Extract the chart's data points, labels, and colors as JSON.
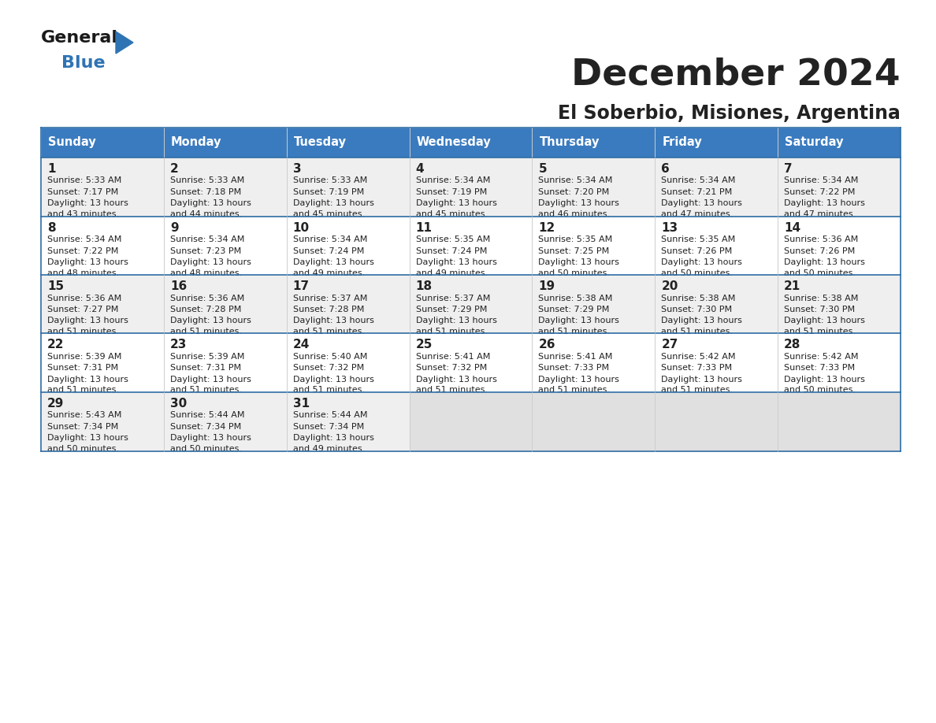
{
  "title": "December 2024",
  "subtitle": "El Soberbio, Misiones, Argentina",
  "header_bg": "#3a7bbf",
  "header_text": "#ffffff",
  "row_bg_odd": "#efefef",
  "row_bg_even": "#ffffff",
  "empty_cell_bg": "#e0e0e0",
  "border_color": "#2e6da4",
  "text_color": "#222222",
  "days_of_week": [
    "Sunday",
    "Monday",
    "Tuesday",
    "Wednesday",
    "Thursday",
    "Friday",
    "Saturday"
  ],
  "calendar": [
    [
      {
        "day": 1,
        "sunrise": "5:33 AM",
        "sunset": "7:17 PM",
        "daylight": "13 hours and 43 minutes."
      },
      {
        "day": 2,
        "sunrise": "5:33 AM",
        "sunset": "7:18 PM",
        "daylight": "13 hours and 44 minutes."
      },
      {
        "day": 3,
        "sunrise": "5:33 AM",
        "sunset": "7:19 PM",
        "daylight": "13 hours and 45 minutes."
      },
      {
        "day": 4,
        "sunrise": "5:34 AM",
        "sunset": "7:19 PM",
        "daylight": "13 hours and 45 minutes."
      },
      {
        "day": 5,
        "sunrise": "5:34 AM",
        "sunset": "7:20 PM",
        "daylight": "13 hours and 46 minutes."
      },
      {
        "day": 6,
        "sunrise": "5:34 AM",
        "sunset": "7:21 PM",
        "daylight": "13 hours and 47 minutes."
      },
      {
        "day": 7,
        "sunrise": "5:34 AM",
        "sunset": "7:22 PM",
        "daylight": "13 hours and 47 minutes."
      }
    ],
    [
      {
        "day": 8,
        "sunrise": "5:34 AM",
        "sunset": "7:22 PM",
        "daylight": "13 hours and 48 minutes."
      },
      {
        "day": 9,
        "sunrise": "5:34 AM",
        "sunset": "7:23 PM",
        "daylight": "13 hours and 48 minutes."
      },
      {
        "day": 10,
        "sunrise": "5:34 AM",
        "sunset": "7:24 PM",
        "daylight": "13 hours and 49 minutes."
      },
      {
        "day": 11,
        "sunrise": "5:35 AM",
        "sunset": "7:24 PM",
        "daylight": "13 hours and 49 minutes."
      },
      {
        "day": 12,
        "sunrise": "5:35 AM",
        "sunset": "7:25 PM",
        "daylight": "13 hours and 50 minutes."
      },
      {
        "day": 13,
        "sunrise": "5:35 AM",
        "sunset": "7:26 PM",
        "daylight": "13 hours and 50 minutes."
      },
      {
        "day": 14,
        "sunrise": "5:36 AM",
        "sunset": "7:26 PM",
        "daylight": "13 hours and 50 minutes."
      }
    ],
    [
      {
        "day": 15,
        "sunrise": "5:36 AM",
        "sunset": "7:27 PM",
        "daylight": "13 hours and 51 minutes."
      },
      {
        "day": 16,
        "sunrise": "5:36 AM",
        "sunset": "7:28 PM",
        "daylight": "13 hours and 51 minutes."
      },
      {
        "day": 17,
        "sunrise": "5:37 AM",
        "sunset": "7:28 PM",
        "daylight": "13 hours and 51 minutes."
      },
      {
        "day": 18,
        "sunrise": "5:37 AM",
        "sunset": "7:29 PM",
        "daylight": "13 hours and 51 minutes."
      },
      {
        "day": 19,
        "sunrise": "5:38 AM",
        "sunset": "7:29 PM",
        "daylight": "13 hours and 51 minutes."
      },
      {
        "day": 20,
        "sunrise": "5:38 AM",
        "sunset": "7:30 PM",
        "daylight": "13 hours and 51 minutes."
      },
      {
        "day": 21,
        "sunrise": "5:38 AM",
        "sunset": "7:30 PM",
        "daylight": "13 hours and 51 minutes."
      }
    ],
    [
      {
        "day": 22,
        "sunrise": "5:39 AM",
        "sunset": "7:31 PM",
        "daylight": "13 hours and 51 minutes."
      },
      {
        "day": 23,
        "sunrise": "5:39 AM",
        "sunset": "7:31 PM",
        "daylight": "13 hours and 51 minutes."
      },
      {
        "day": 24,
        "sunrise": "5:40 AM",
        "sunset": "7:32 PM",
        "daylight": "13 hours and 51 minutes."
      },
      {
        "day": 25,
        "sunrise": "5:41 AM",
        "sunset": "7:32 PM",
        "daylight": "13 hours and 51 minutes."
      },
      {
        "day": 26,
        "sunrise": "5:41 AM",
        "sunset": "7:33 PM",
        "daylight": "13 hours and 51 minutes."
      },
      {
        "day": 27,
        "sunrise": "5:42 AM",
        "sunset": "7:33 PM",
        "daylight": "13 hours and 51 minutes."
      },
      {
        "day": 28,
        "sunrise": "5:42 AM",
        "sunset": "7:33 PM",
        "daylight": "13 hours and 50 minutes."
      }
    ],
    [
      {
        "day": 29,
        "sunrise": "5:43 AM",
        "sunset": "7:34 PM",
        "daylight": "13 hours and 50 minutes."
      },
      {
        "day": 30,
        "sunrise": "5:44 AM",
        "sunset": "7:34 PM",
        "daylight": "13 hours and 50 minutes."
      },
      {
        "day": 31,
        "sunrise": "5:44 AM",
        "sunset": "7:34 PM",
        "daylight": "13 hours and 49 minutes."
      },
      null,
      null,
      null,
      null
    ]
  ],
  "logo_text1": "General",
  "logo_text2": "Blue",
  "logo_color1": "#1a1a1a",
  "logo_color2": "#2e74b5",
  "logo_triangle_color": "#2e74b5",
  "fig_width": 11.88,
  "fig_height": 9.18,
  "dpi": 100
}
